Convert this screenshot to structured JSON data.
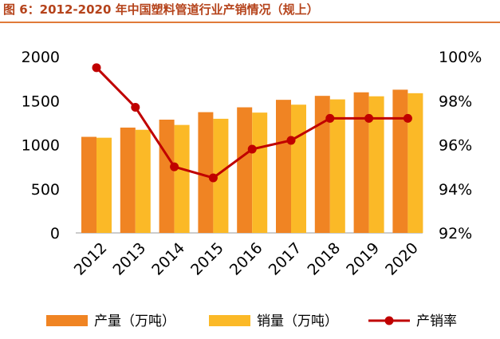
{
  "figure_title": "图 6：2012-2020 年中国塑料管道行业产销情况（规上）",
  "colors": {
    "production": "#f08423",
    "sales": "#fbb927",
    "rate": "#c00000",
    "title": "#b5431b",
    "rule": "#e07b39"
  },
  "chart_data": {
    "type": "bar",
    "title": "图 6：2012-2020 年中国塑料管道行业产销情况（规上）",
    "categories": [
      "2012",
      "2013",
      "2014",
      "2015",
      "2016",
      "2017",
      "2018",
      "2019",
      "2020"
    ],
    "series": [
      {
        "name": "产量（万吨）",
        "type": "bar",
        "axis": "left",
        "values": [
          1090,
          1195,
          1285,
          1370,
          1425,
          1510,
          1555,
          1595,
          1625
        ]
      },
      {
        "name": "销量（万吨）",
        "type": "bar",
        "axis": "left",
        "values": [
          1080,
          1170,
          1225,
          1295,
          1365,
          1455,
          1515,
          1550,
          1585
        ]
      },
      {
        "name": "产销率",
        "type": "line",
        "axis": "right",
        "values": [
          99.5,
          97.7,
          95.0,
          94.5,
          95.8,
          96.2,
          97.2,
          97.2,
          97.2
        ]
      }
    ],
    "y_left": {
      "min": 0,
      "max": 2000,
      "ticks": [
        "0",
        "500",
        "1000",
        "1500",
        "2000"
      ]
    },
    "y_right": {
      "min": 92,
      "max": 100,
      "ticks": [
        "92%",
        "94%",
        "96%",
        "98%",
        "100%"
      ]
    },
    "legend_position": "bottom",
    "grid": false
  }
}
